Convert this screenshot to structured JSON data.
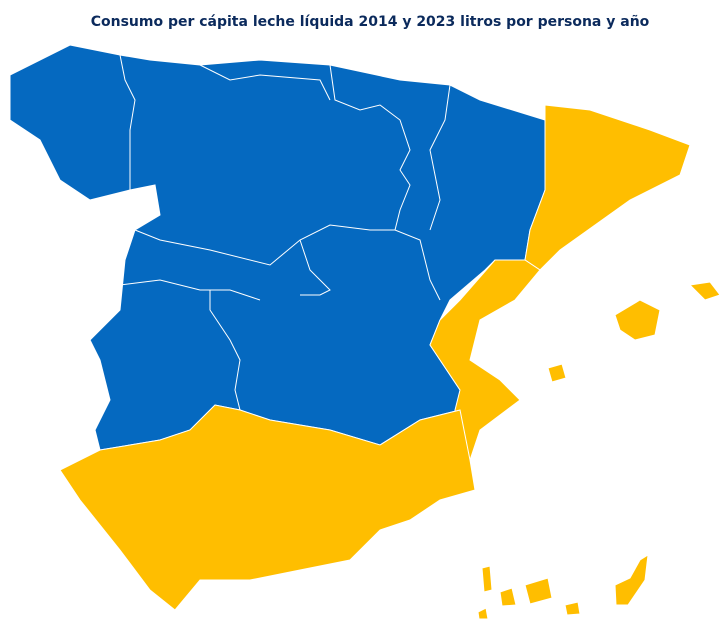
{
  "title": "Consumo per cápita leche líquida 2014 y 2023 litros por persona y año"
}
